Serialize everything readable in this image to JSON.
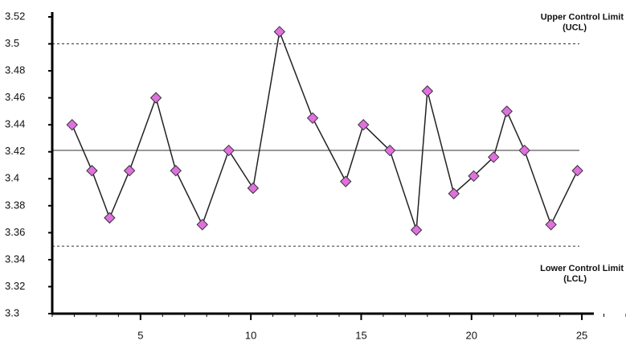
{
  "chart_data": {
    "type": "line",
    "x": [
      1.9,
      2.8,
      3.6,
      4.5,
      5.7,
      6.6,
      7.8,
      9.0,
      10.1,
      11.3,
      12.8,
      14.3,
      15.1,
      16.3,
      17.5,
      18.0,
      19.2,
      20.1,
      21.0,
      21.6,
      22.4,
      23.6,
      24.8
    ],
    "series": [
      {
        "color": "#222222",
        "marker_color": "#e070e0",
        "values": [
          3.44,
          3.406,
          3.371,
          3.406,
          3.46,
          3.406,
          3.366,
          3.421,
          3.393,
          3.509,
          3.445,
          3.398,
          3.44,
          3.421,
          3.362,
          3.465,
          3.389,
          3.402,
          3.416,
          3.45,
          3.421,
          3.366,
          3.406
        ]
      }
    ],
    "xlim": [
      1,
      27
    ],
    "xticks": [
      5,
      10,
      15,
      20,
      25
    ],
    "ylim": [
      3.3,
      3.52
    ],
    "yticks": [
      3.3,
      3.32,
      3.34,
      3.36,
      3.38,
      3.4,
      3.42,
      3.44,
      3.46,
      3.48,
      3.5,
      3.52
    ],
    "reference_lines": [
      {
        "value": 3.5,
        "style": "dashed"
      },
      {
        "value": 3.421,
        "style": "solid"
      },
      {
        "value": 3.35,
        "style": "dashed"
      }
    ],
    "annotations": [
      {
        "lines": [
          "Upper Control Limit",
          "(UCL)"
        ],
        "at": 3.5
      },
      {
        "lines": [
          "Lower Control Limit",
          "(LCL)"
        ],
        "at": 3.35
      }
    ]
  }
}
